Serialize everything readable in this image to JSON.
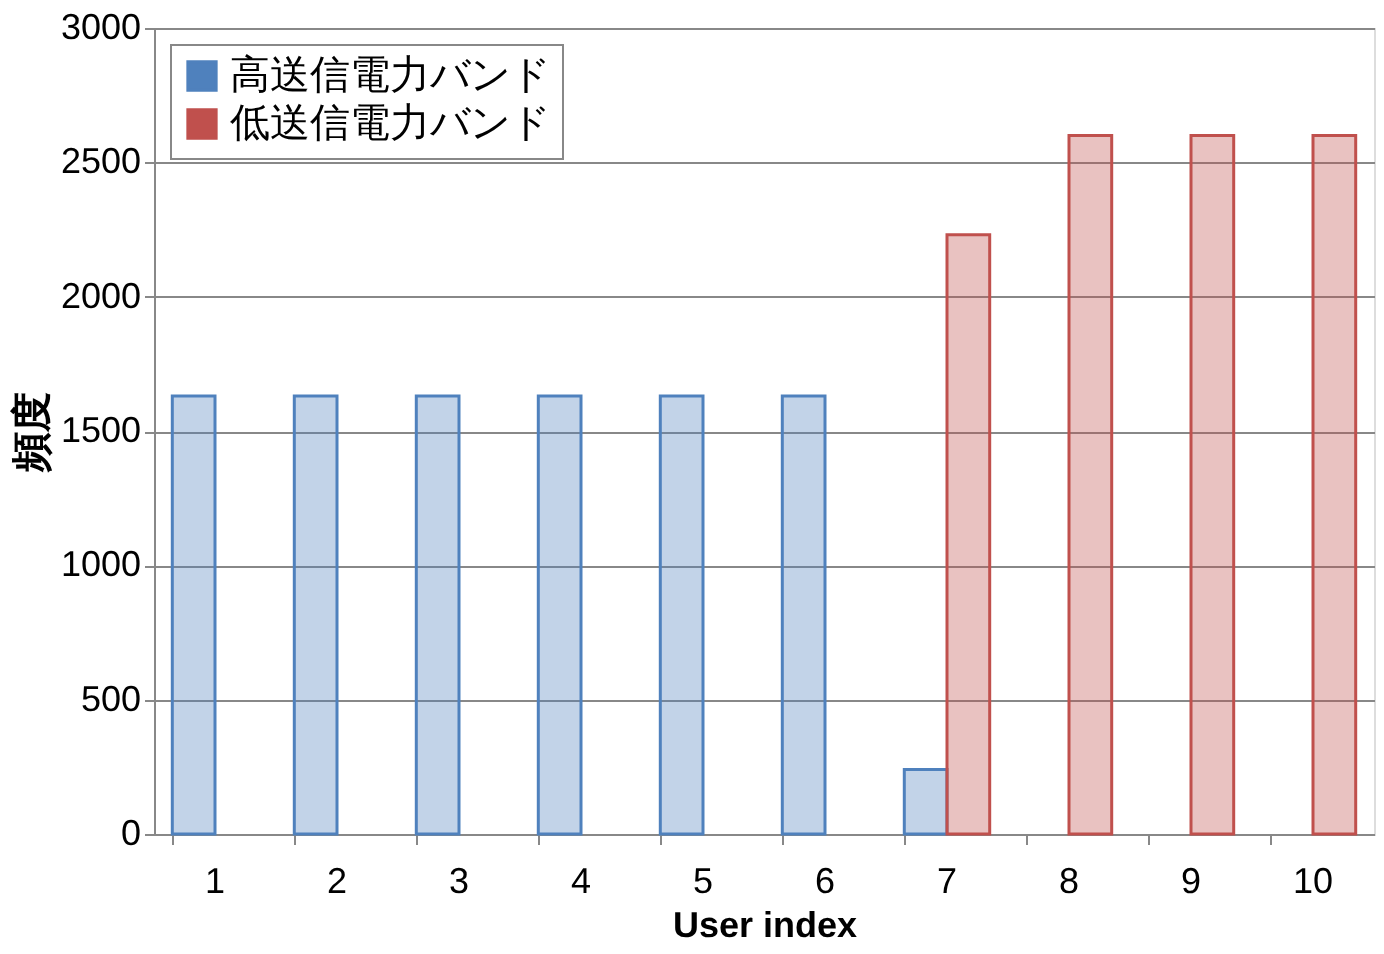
{
  "chart_data": {
    "type": "bar",
    "xlabel": "User index",
    "ylabel": "頻度",
    "categories": [
      "1",
      "2",
      "3",
      "4",
      "5",
      "6",
      "7",
      "8",
      "9",
      "10"
    ],
    "series": [
      {
        "name": "高送信電力バンド",
        "color": "#4f81bd",
        "values": [
          1630,
          1630,
          1630,
          1630,
          1630,
          1630,
          240,
          null,
          null,
          null
        ]
      },
      {
        "name": "低送信電力バンド",
        "color": "#c0504d",
        "values": [
          null,
          null,
          null,
          null,
          null,
          null,
          2230,
          2600,
          2600,
          2600
        ]
      }
    ],
    "ylim": [
      0,
      3000
    ],
    "yticks": [
      0,
      500,
      1000,
      1500,
      2000,
      2500,
      3000
    ],
    "grid": "y",
    "legend": "top left"
  }
}
